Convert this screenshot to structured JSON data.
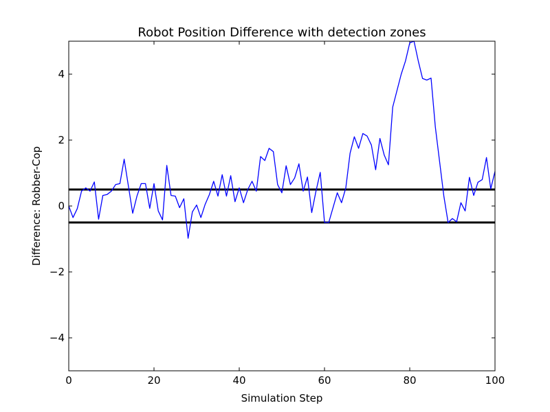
{
  "chart_data": {
    "type": "line",
    "title": "Robot Position Difference with detection zones",
    "xlabel": "Simulation Step",
    "ylabel": "Difference: Robber-Cop",
    "xlim": [
      0,
      100
    ],
    "ylim": [
      -5,
      5
    ],
    "x_ticks": [
      0,
      20,
      40,
      60,
      80,
      100
    ],
    "y_ticks": [
      -4,
      -2,
      0,
      2,
      4
    ],
    "grid": false,
    "series": [
      {
        "color": "#0000ff",
        "x": [
          0,
          1,
          2,
          3,
          4,
          5,
          6,
          7,
          8,
          9,
          10,
          11,
          12,
          13,
          14,
          15,
          16,
          17,
          18,
          19,
          20,
          21,
          22,
          23,
          24,
          25,
          26,
          27,
          28,
          29,
          30,
          31,
          32,
          33,
          34,
          35,
          36,
          37,
          38,
          39,
          40,
          41,
          42,
          43,
          44,
          45,
          46,
          47,
          48,
          49,
          50,
          51,
          52,
          53,
          54,
          55,
          56,
          57,
          58,
          59,
          60,
          61,
          62,
          63,
          64,
          65,
          66,
          67,
          68,
          69,
          70,
          71,
          72,
          73,
          74,
          75,
          76,
          77,
          78,
          79,
          80,
          81,
          82,
          83,
          84,
          85,
          86,
          87,
          88,
          89,
          90,
          91,
          92,
          93,
          94,
          95,
          96,
          97,
          98,
          99,
          100
        ],
        "y": [
          0,
          -0.35,
          -0.08,
          0.45,
          0.55,
          0.45,
          0.73,
          -0.4,
          0.32,
          0.35,
          0.45,
          0.65,
          0.68,
          1.42,
          0.6,
          -0.22,
          0.3,
          0.68,
          0.68,
          -0.07,
          0.68,
          -0.15,
          -0.42,
          1.23,
          0.32,
          0.3,
          -0.05,
          0.22,
          -0.98,
          -0.18,
          0.03,
          -0.35,
          0.05,
          0.35,
          0.75,
          0.3,
          0.95,
          0.3,
          0.92,
          0.13,
          0.55,
          0.1,
          0.5,
          0.75,
          0.45,
          1.5,
          1.38,
          1.75,
          1.65,
          0.65,
          0.4,
          1.22,
          0.65,
          0.85,
          1.28,
          0.45,
          0.88,
          -0.2,
          0.45,
          1.02,
          -0.5,
          -0.5,
          -0.05,
          0.4,
          0.1,
          0.55,
          1.6,
          2.1,
          1.75,
          2.2,
          2.12,
          1.85,
          1.1,
          2.05,
          1.55,
          1.25,
          3.0,
          3.5,
          4.0,
          4.4,
          4.95,
          5.0,
          4.4,
          3.87,
          3.82,
          3.88,
          2.4,
          1.35,
          0.3,
          -0.5,
          -0.38,
          -0.48,
          0.1,
          -0.15,
          0.87,
          0.32,
          0.72,
          0.8,
          1.47,
          0.52,
          1.05
        ]
      }
    ],
    "reference_lines": [
      {
        "y": 0.5,
        "color": "#000000"
      },
      {
        "y": -0.5,
        "color": "#000000"
      }
    ]
  }
}
